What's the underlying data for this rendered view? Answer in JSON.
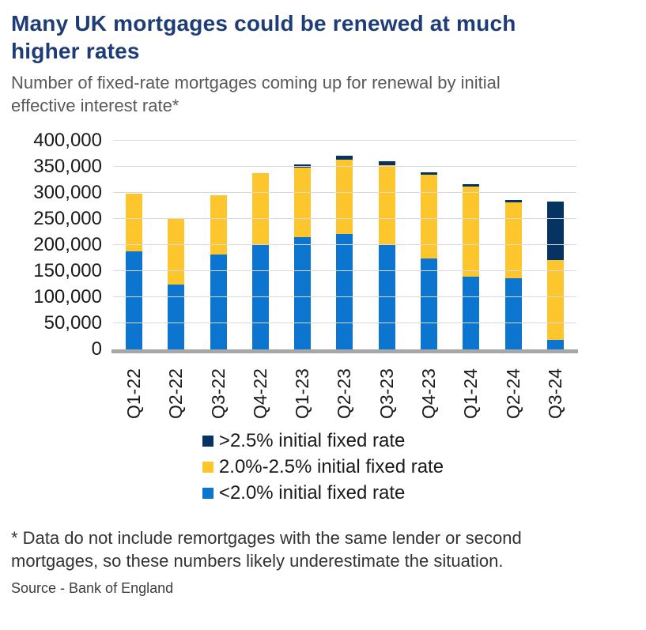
{
  "page": {
    "title": "Many UK mortgages could be renewed at much higher rates",
    "subtitle": "Number of fixed-rate mortgages coming up for renewal by initial effective interest rate*",
    "footnote": "* Data do not include remortgages with the same lender or second mortgages, so these numbers likely underestimate the situation.",
    "source": "Source - Bank of England"
  },
  "colors": {
    "title_text": "#1e3c78",
    "subtitle_text": "#595959",
    "axis_text": "#1a1a1a",
    "footnote_text": "#333333",
    "source_text": "#3d3d3d",
    "gridline": "#d9d9d9",
    "baseline": "#a7a7a7",
    "series_blue": "#0b75d0",
    "series_yellow": "#fdc62d",
    "series_navy": "#063362"
  },
  "chart_data": {
    "type": "bar",
    "stacked": true,
    "title": "Many UK mortgages could be renewed at much higher rates",
    "subtitle": "Number of fixed-rate mortgages coming up for renewal by initial effective interest rate*",
    "categories": [
      "Q1-22",
      "Q2-22",
      "Q3-22",
      "Q4-22",
      "Q1-23",
      "Q2-23",
      "Q3-23",
      "Q4-23",
      "Q1-24",
      "Q2-24",
      "Q3-24"
    ],
    "series": [
      {
        "name": "<2.0% initial fixed rate",
        "color": "#0b75d0",
        "values": [
          188000,
          125000,
          182000,
          202000,
          216000,
          221000,
          200000,
          174000,
          139000,
          137000,
          18000
        ]
      },
      {
        "name": "2.0%-2.5% initial fixed rate",
        "color": "#fdc62d",
        "values": [
          110000,
          125000,
          114000,
          136000,
          133000,
          143000,
          153000,
          161000,
          174000,
          145000,
          153000
        ]
      },
      {
        "name": ">2.5% initial fixed rate",
        "color": "#063362",
        "values": [
          0,
          0,
          0,
          0,
          6000,
          7000,
          7000,
          5000,
          4000,
          4000,
          113000
        ]
      }
    ],
    "totals": [
      298000,
      250000,
      296000,
      338000,
      355000,
      371000,
      360000,
      340000,
      317000,
      286000,
      284000
    ],
    "ylim": [
      0,
      400000
    ],
    "yticks": [
      {
        "label": "0",
        "value": 0
      },
      {
        "label": "50,000",
        "value": 50000
      },
      {
        "label": "100,000",
        "value": 100000
      },
      {
        "label": "150,000",
        "value": 150000
      },
      {
        "label": "200,000",
        "value": 200000
      },
      {
        "label": "250,000",
        "value": 250000
      },
      {
        "label": "300,000",
        "value": 300000
      },
      {
        "label": "350,000",
        "value": 350000
      },
      {
        "label": "400,000",
        "value": 400000
      }
    ],
    "grid": "horizontal",
    "legend": {
      "position": "bottom",
      "items": [
        ">2.5% initial fixed rate",
        "2.0%-2.5% initial fixed rate",
        "<2.0% initial fixed rate"
      ]
    }
  }
}
